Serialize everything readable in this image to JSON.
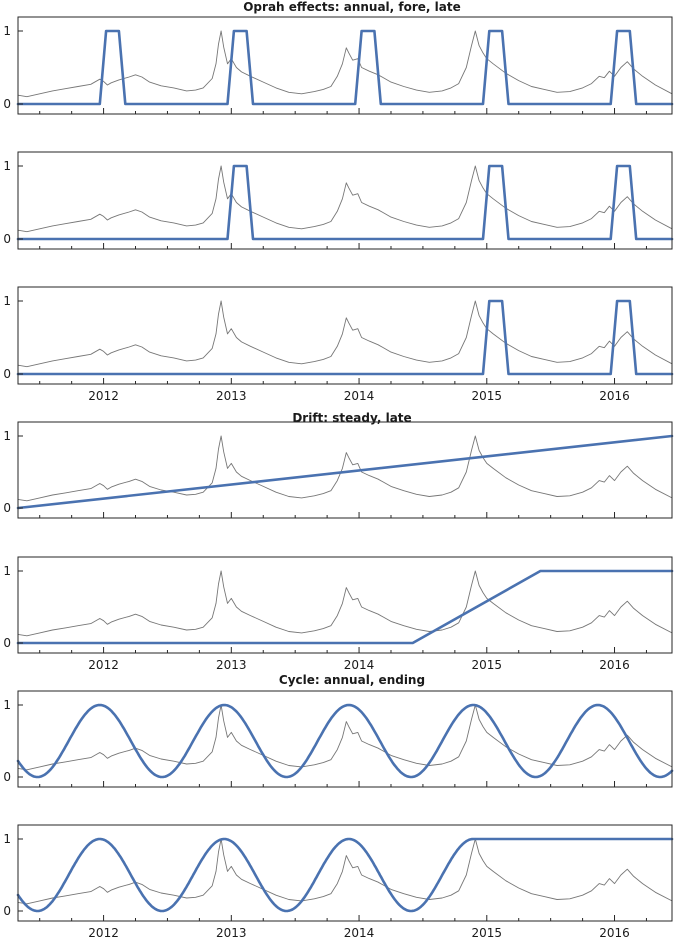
{
  "section_titles": [
    "Oprah effects: annual, fore, late",
    "Drift: steady, late",
    "Cycle: annual, ending"
  ],
  "chart_data": [
    {
      "type": "line",
      "panel": "oprah-annual",
      "ylim": [
        0,
        1
      ],
      "yticks": [
        0,
        1
      ],
      "xlim": [
        2011.33,
        2016.45
      ],
      "xticks": [
        2012,
        2013,
        2014,
        2015,
        2016
      ],
      "show_x_labels": false,
      "indicator": [
        [
          2011.33,
          0
        ],
        [
          2011.97,
          0
        ],
        [
          2012.02,
          1
        ],
        [
          2012.12,
          1
        ],
        [
          2012.17,
          0
        ],
        [
          2012.97,
          0
        ],
        [
          2013.02,
          1
        ],
        [
          2013.12,
          1
        ],
        [
          2013.17,
          0
        ],
        [
          2013.97,
          0
        ],
        [
          2014.02,
          1
        ],
        [
          2014.12,
          1
        ],
        [
          2014.17,
          0
        ],
        [
          2014.97,
          0
        ],
        [
          2015.02,
          1
        ],
        [
          2015.12,
          1
        ],
        [
          2015.17,
          0
        ],
        [
          2015.97,
          0
        ],
        [
          2016.02,
          1
        ],
        [
          2016.12,
          1
        ],
        [
          2016.17,
          0
        ],
        [
          2016.45,
          0
        ]
      ]
    },
    {
      "type": "line",
      "panel": "oprah-fore",
      "ylim": [
        0,
        1
      ],
      "yticks": [
        0,
        1
      ],
      "xlim": [
        2011.33,
        2016.45
      ],
      "xticks": [
        2012,
        2013,
        2014,
        2015,
        2016
      ],
      "show_x_labels": false,
      "indicator": [
        [
          2011.33,
          0
        ],
        [
          2012.97,
          0
        ],
        [
          2013.02,
          1
        ],
        [
          2013.12,
          1
        ],
        [
          2013.17,
          0
        ],
        [
          2014.97,
          0
        ],
        [
          2015.02,
          1
        ],
        [
          2015.12,
          1
        ],
        [
          2015.17,
          0
        ],
        [
          2015.97,
          0
        ],
        [
          2016.02,
          1
        ],
        [
          2016.12,
          1
        ],
        [
          2016.17,
          0
        ],
        [
          2016.45,
          0
        ]
      ]
    },
    {
      "type": "line",
      "panel": "oprah-late",
      "ylim": [
        0,
        1
      ],
      "yticks": [
        0,
        1
      ],
      "xlim": [
        2011.33,
        2016.45
      ],
      "xticks": [
        2012,
        2013,
        2014,
        2015,
        2016
      ],
      "show_x_labels": true,
      "indicator": [
        [
          2011.33,
          0
        ],
        [
          2014.97,
          0
        ],
        [
          2015.02,
          1
        ],
        [
          2015.12,
          1
        ],
        [
          2015.17,
          0
        ],
        [
          2015.97,
          0
        ],
        [
          2016.02,
          1
        ],
        [
          2016.12,
          1
        ],
        [
          2016.17,
          0
        ],
        [
          2016.45,
          0
        ]
      ]
    },
    {
      "type": "line",
      "panel": "drift-steady",
      "ylim": [
        0,
        1
      ],
      "yticks": [
        0,
        1
      ],
      "xlim": [
        2011.33,
        2016.45
      ],
      "xticks": [
        2012,
        2013,
        2014,
        2015,
        2016
      ],
      "show_x_labels": false,
      "indicator": [
        [
          2011.33,
          0
        ],
        [
          2016.45,
          1
        ]
      ]
    },
    {
      "type": "line",
      "panel": "drift-late",
      "ylim": [
        0,
        1
      ],
      "yticks": [
        0,
        1
      ],
      "xlim": [
        2011.33,
        2016.45
      ],
      "xticks": [
        2012,
        2013,
        2014,
        2015,
        2016
      ],
      "show_x_labels": true,
      "indicator": [
        [
          2011.33,
          0
        ],
        [
          2014.42,
          0
        ],
        [
          2015.42,
          1
        ],
        [
          2016.45,
          1
        ]
      ]
    },
    {
      "type": "line",
      "panel": "cycle-annual",
      "ylim": [
        0,
        1
      ],
      "yticks": [
        0,
        1
      ],
      "xlim": [
        2011.33,
        2016.45
      ],
      "xticks": [
        2012,
        2013,
        2014,
        2015,
        2016
      ],
      "show_x_labels": false,
      "indicator_fn": {
        "kind": "cosine",
        "peak": 2011.97,
        "period": 0.975,
        "from": 2011.33,
        "to": 2016.45
      }
    },
    {
      "type": "line",
      "panel": "cycle-ending",
      "ylim": [
        0,
        1
      ],
      "yticks": [
        0,
        1
      ],
      "xlim": [
        2011.33,
        2016.45
      ],
      "xticks": [
        2012,
        2013,
        2014,
        2015,
        2016
      ],
      "show_x_labels": true,
      "indicator_fn": {
        "kind": "cosine",
        "peak": 2011.97,
        "period": 0.975,
        "from": 2011.33,
        "to": 2014.895,
        "hold_after": 1
      }
    }
  ],
  "background_series": [
    [
      2011.33,
      0.12
    ],
    [
      2011.4,
      0.1
    ],
    [
      2011.5,
      0.14
    ],
    [
      2011.6,
      0.18
    ],
    [
      2011.7,
      0.21
    ],
    [
      2011.8,
      0.24
    ],
    [
      2011.9,
      0.27
    ],
    [
      2011.97,
      0.34
    ],
    [
      2012.0,
      0.31
    ],
    [
      2012.03,
      0.26
    ],
    [
      2012.06,
      0.29
    ],
    [
      2012.12,
      0.33
    ],
    [
      2012.2,
      0.37
    ],
    [
      2012.25,
      0.4
    ],
    [
      2012.3,
      0.37
    ],
    [
      2012.36,
      0.3
    ],
    [
      2012.45,
      0.25
    ],
    [
      2012.55,
      0.22
    ],
    [
      2012.65,
      0.18
    ],
    [
      2012.72,
      0.19
    ],
    [
      2012.78,
      0.22
    ],
    [
      2012.85,
      0.35
    ],
    [
      2012.88,
      0.55
    ],
    [
      2012.9,
      0.82
    ],
    [
      2012.92,
      1.0
    ],
    [
      2012.94,
      0.78
    ],
    [
      2012.97,
      0.55
    ],
    [
      2013.0,
      0.62
    ],
    [
      2013.04,
      0.5
    ],
    [
      2013.08,
      0.44
    ],
    [
      2013.15,
      0.38
    ],
    [
      2013.25,
      0.3
    ],
    [
      2013.35,
      0.22
    ],
    [
      2013.45,
      0.16
    ],
    [
      2013.55,
      0.14
    ],
    [
      2013.65,
      0.17
    ],
    [
      2013.72,
      0.2
    ],
    [
      2013.78,
      0.24
    ],
    [
      2013.83,
      0.38
    ],
    [
      2013.87,
      0.55
    ],
    [
      2013.9,
      0.77
    ],
    [
      2013.92,
      0.7
    ],
    [
      2013.95,
      0.6
    ],
    [
      2013.99,
      0.62
    ],
    [
      2014.02,
      0.5
    ],
    [
      2014.08,
      0.45
    ],
    [
      2014.15,
      0.4
    ],
    [
      2014.25,
      0.3
    ],
    [
      2014.35,
      0.24
    ],
    [
      2014.45,
      0.19
    ],
    [
      2014.55,
      0.16
    ],
    [
      2014.65,
      0.18
    ],
    [
      2014.72,
      0.22
    ],
    [
      2014.78,
      0.28
    ],
    [
      2014.84,
      0.5
    ],
    [
      2014.88,
      0.8
    ],
    [
      2014.91,
      1.0
    ],
    [
      2014.94,
      0.8
    ],
    [
      2014.97,
      0.7
    ],
    [
      2015.0,
      0.62
    ],
    [
      2015.05,
      0.55
    ],
    [
      2015.15,
      0.42
    ],
    [
      2015.25,
      0.32
    ],
    [
      2015.35,
      0.24
    ],
    [
      2015.45,
      0.2
    ],
    [
      2015.55,
      0.16
    ],
    [
      2015.65,
      0.17
    ],
    [
      2015.75,
      0.22
    ],
    [
      2015.82,
      0.28
    ],
    [
      2015.88,
      0.38
    ],
    [
      2015.92,
      0.36
    ],
    [
      2015.96,
      0.45
    ],
    [
      2016.0,
      0.38
    ],
    [
      2016.05,
      0.5
    ],
    [
      2016.1,
      0.58
    ],
    [
      2016.15,
      0.48
    ],
    [
      2016.22,
      0.38
    ],
    [
      2016.32,
      0.26
    ],
    [
      2016.45,
      0.14
    ]
  ]
}
